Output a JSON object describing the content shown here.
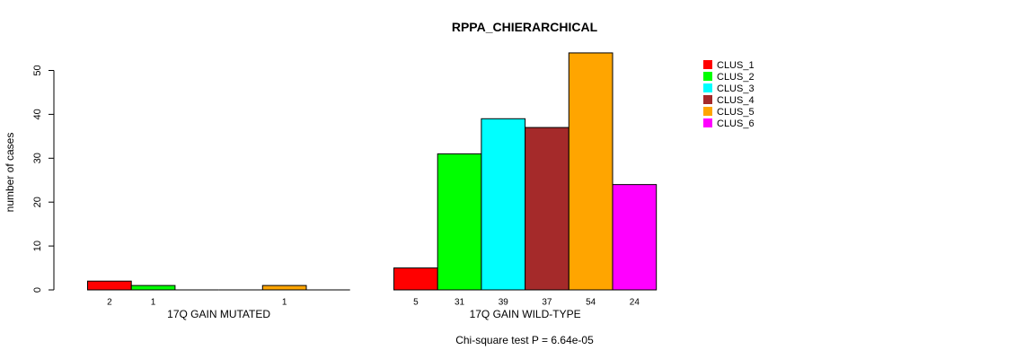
{
  "chart_data": {
    "type": "bar",
    "title": "RPPA_CHIERARCHICAL",
    "ylabel": "number of cases",
    "ylim": [
      0,
      50
    ],
    "yticks": [
      "0",
      "10",
      "20",
      "30",
      "40",
      "50"
    ],
    "series_names": [
      "CLUS_1",
      "CLUS_2",
      "CLUS_3",
      "CLUS_4",
      "CLUS_5",
      "CLUS_6"
    ],
    "colors": [
      "#ff0000",
      "#00ff00",
      "#00ffff",
      "#a52a2a",
      "#ffa500",
      "#ff00ff"
    ],
    "groups": [
      {
        "name": "17Q GAIN MUTATED",
        "values": [
          2,
          1,
          0,
          0,
          1,
          0
        ],
        "value_labels": [
          "2",
          "1",
          "",
          "",
          "1",
          ""
        ]
      },
      {
        "name": "17Q GAIN WILD-TYPE",
        "values": [
          5,
          31,
          39,
          37,
          54,
          24
        ],
        "value_labels": [
          "5",
          "31",
          "39",
          "37",
          "54",
          "24"
        ]
      }
    ],
    "legend_position": "top-right",
    "footnote": "Chi-square test P = 6.64e-05"
  }
}
